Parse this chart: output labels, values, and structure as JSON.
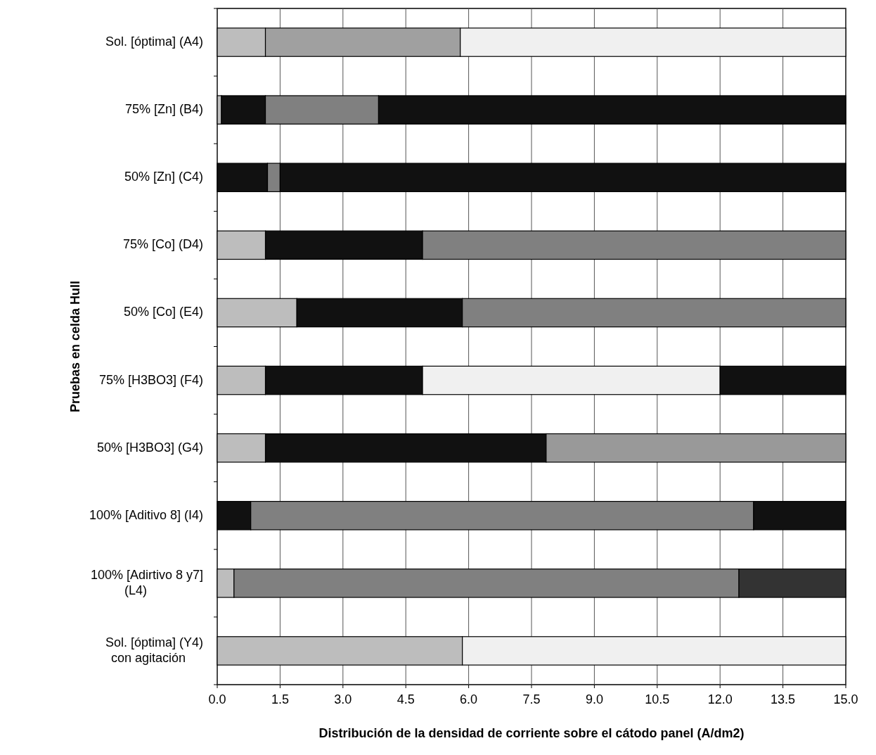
{
  "chart_data": {
    "type": "bar",
    "orientation": "horizontal",
    "stacked": true,
    "xlabel": "Distribución de la densidad de corriente sobre el cátodo panel (A/dm2)",
    "ylabel": "Pruebas en celda Hull",
    "categories": [
      "Sol. [óptima] (A4)",
      "75% [Zn] (B4)",
      "50% [Zn] (C4)",
      "75% [Co] (D4)",
      "50% [Co] (E4)",
      "75% [H3BO3] (F4)",
      "50% [H3BO3] (G4)",
      "100% [Aditivo 8] (I4)",
      "100% [Adirtivo 8 y7] (L4)",
      "Sol. [óptima] (Y4) con agitación"
    ],
    "series": [
      {
        "values": [
          1.15,
          0.1,
          1.2,
          1.15,
          1.9,
          1.15,
          1.15,
          0.8,
          0.4,
          5.85
        ],
        "colors": [
          "#bdbdbd",
          "#bdbdbd",
          "#111111",
          "#bdbdbd",
          "#bdbdbd",
          "#bdbdbd",
          "#bdbdbd",
          "#111111",
          "#bdbdbd",
          "#bdbdbd"
        ]
      },
      {
        "values": [
          4.65,
          1.05,
          0.3,
          3.75,
          3.95,
          3.75,
          6.7,
          12.0,
          12.05,
          9.15
        ],
        "colors": [
          "#a0a0a0",
          "#111111",
          "#808080",
          "#111111",
          "#111111",
          "#111111",
          "#111111",
          "#808080",
          "#808080",
          "#f0f0f0"
        ]
      },
      {
        "values": [
          9.2,
          2.7,
          13.5,
          10.1,
          9.15,
          7.1,
          7.15,
          2.2,
          2.55,
          null
        ],
        "colors": [
          "#f0f0f0",
          "#808080",
          "#111111",
          "#808080",
          "#808080",
          "#f0f0f0",
          "#999999",
          "#111111",
          "#333333",
          null
        ]
      },
      {
        "values": [
          null,
          11.15,
          null,
          null,
          null,
          3.0,
          null,
          null,
          null,
          null
        ],
        "colors": [
          null,
          "#111111",
          null,
          null,
          null,
          "#111111",
          null,
          null,
          null,
          null
        ]
      }
    ],
    "xlim": [
      0,
      15
    ],
    "xticks": [
      {
        "value": 0,
        "label": "0.0"
      },
      {
        "value": 1.5,
        "label": "1.5"
      },
      {
        "value": 3,
        "label": "3.0"
      },
      {
        "value": 4.5,
        "label": "4.5"
      },
      {
        "value": 6,
        "label": "6.0"
      },
      {
        "value": 7.5,
        "label": "7.5"
      },
      {
        "value": 9,
        "label": "9.0"
      },
      {
        "value": 10.5,
        "label": "10.5"
      },
      {
        "value": 12,
        "label": "12.0"
      },
      {
        "value": 13.5,
        "label": "13.5"
      },
      {
        "value": 15,
        "label": "15.0"
      }
    ],
    "grid": "x"
  }
}
